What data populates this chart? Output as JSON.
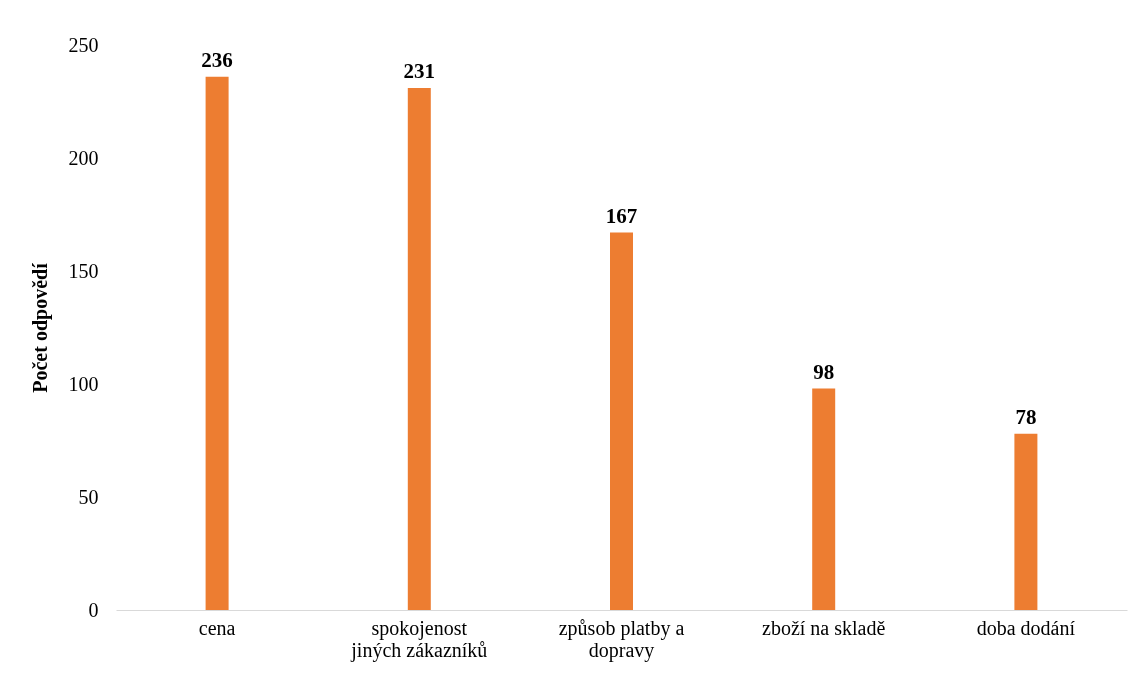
{
  "chart_data": {
    "type": "bar",
    "ylabel": "Počet odpovědí",
    "categories": [
      "cena",
      "spokojenost jiných zákazníků",
      "způsob platby a dopravy",
      "zboží na skladě",
      "doba dodání"
    ],
    "values": [
      236,
      231,
      167,
      98,
      78
    ],
    "color": "#ed7d31",
    "ylim": [
      0,
      250
    ],
    "yticks": [
      0,
      50,
      100,
      150,
      200,
      250
    ],
    "grid": false,
    "data_labels": true
  }
}
